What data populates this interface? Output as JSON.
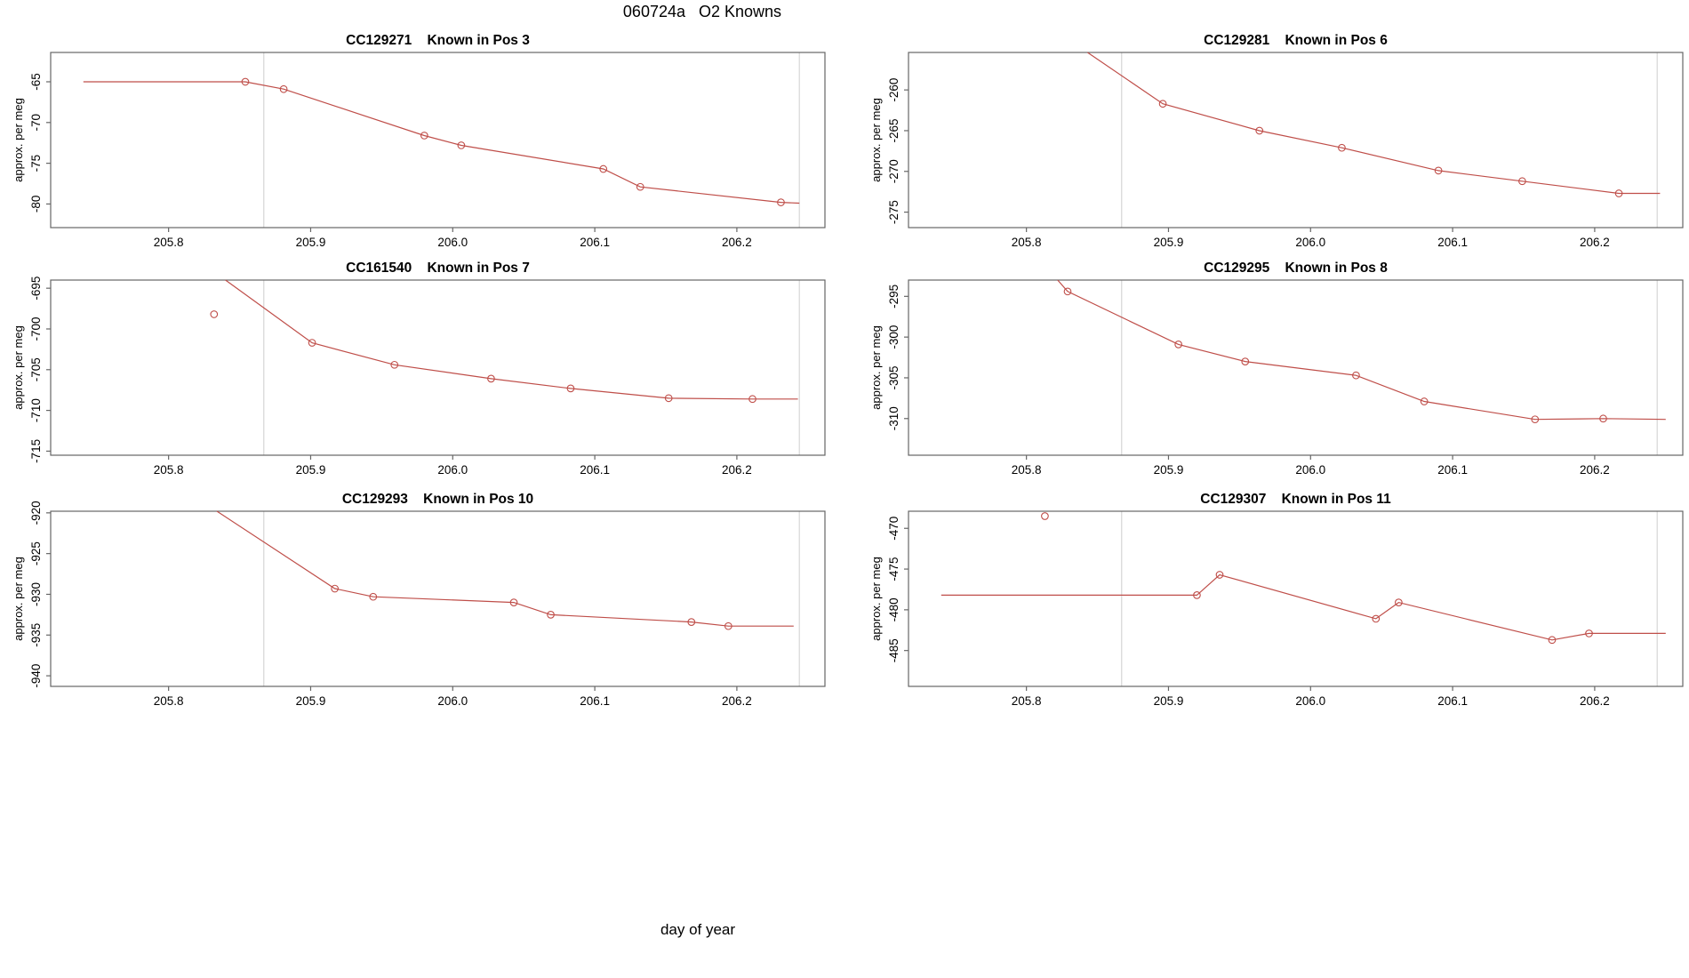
{
  "page": {
    "title": "060724a   O2 Knowns",
    "xlabel": "day of year",
    "line_color": "#bf4e49",
    "grid_color": "#d9d9d9",
    "box_color": "#666666",
    "text_color": "#000000"
  },
  "chart_data": [
    {
      "type": "line",
      "title": "CC129271    Known in Pos 3",
      "ylabel": "approx. per meg",
      "xlim": [
        205.717,
        206.262
      ],
      "ylim": [
        -82.9,
        -61.4
      ],
      "xticks": [
        205.8,
        205.9,
        206.0,
        206.1,
        206.2
      ],
      "xtick_labels": [
        "205.8",
        "205.9",
        "206.0",
        "206.1",
        "206.2"
      ],
      "yticks": [
        -65,
        -70,
        -75,
        -80
      ],
      "ytick_labels": [
        "-65",
        "-70",
        "-75",
        "-80"
      ],
      "vlines": [
        205.867,
        206.244
      ],
      "line": [
        [
          205.74,
          -65.0
        ],
        [
          205.854,
          -65.0
        ],
        [
          205.881,
          -65.9
        ],
        [
          205.98,
          -71.6
        ],
        [
          206.006,
          -72.8
        ],
        [
          206.106,
          -75.7
        ],
        [
          206.132,
          -77.9
        ],
        [
          206.231,
          -79.8
        ],
        [
          206.244,
          -79.9
        ]
      ],
      "markers": [
        [
          205.854,
          -65.0
        ],
        [
          205.881,
          -65.9
        ],
        [
          205.98,
          -71.6
        ],
        [
          206.006,
          -72.8
        ],
        [
          206.106,
          -75.7
        ],
        [
          206.132,
          -77.9
        ],
        [
          206.231,
          -79.8
        ]
      ],
      "points": []
    },
    {
      "type": "line",
      "title": "CC129281    Known in Pos 6",
      "ylabel": "approx. per meg",
      "xlim": [
        205.717,
        206.262
      ],
      "ylim": [
        -276.9,
        -255.4
      ],
      "xticks": [
        205.8,
        205.9,
        206.0,
        206.1,
        206.2
      ],
      "xtick_labels": [
        "205.8",
        "205.9",
        "206.0",
        "206.1",
        "206.2"
      ],
      "yticks": [
        -260,
        -265,
        -270,
        -275
      ],
      "ytick_labels": [
        "-260",
        "-265",
        "-270",
        "-275"
      ],
      "vlines": [
        205.867,
        206.244
      ],
      "line": [
        [
          205.843,
          -255.4
        ],
        [
          205.896,
          -261.7
        ],
        [
          205.964,
          -265.0
        ],
        [
          206.022,
          -267.1
        ],
        [
          206.09,
          -269.9
        ],
        [
          206.149,
          -271.2
        ],
        [
          206.217,
          -272.7
        ],
        [
          206.246,
          -272.7
        ]
      ],
      "markers": [
        [
          205.896,
          -261.7
        ],
        [
          205.964,
          -265.0
        ],
        [
          206.022,
          -267.1
        ],
        [
          206.09,
          -269.9
        ],
        [
          206.149,
          -271.2
        ],
        [
          206.217,
          -272.7
        ]
      ],
      "points": []
    },
    {
      "type": "line",
      "title": "CC161540    Known in Pos 7",
      "ylabel": "approx. per meg",
      "xlim": [
        205.717,
        206.262
      ],
      "ylim": [
        -715.5,
        -694.0
      ],
      "xticks": [
        205.8,
        205.9,
        206.0,
        206.1,
        206.2
      ],
      "xtick_labels": [
        "205.8",
        "205.9",
        "206.0",
        "206.1",
        "206.2"
      ],
      "yticks": [
        -695,
        -700,
        -705,
        -710,
        -715
      ],
      "ytick_labels": [
        "-695",
        "-700",
        "-705",
        "-710",
        "-715"
      ],
      "vlines": [
        205.867,
        206.244
      ],
      "line": [
        [
          205.84,
          -694.0
        ],
        [
          205.901,
          -701.7
        ],
        [
          205.959,
          -704.4
        ],
        [
          206.027,
          -706.1
        ],
        [
          206.083,
          -707.3
        ],
        [
          206.152,
          -708.5
        ],
        [
          206.211,
          -708.6
        ],
        [
          206.243,
          -708.6
        ]
      ],
      "markers": [
        [
          205.901,
          -701.7
        ],
        [
          205.959,
          -704.4
        ],
        [
          206.027,
          -706.1
        ],
        [
          206.083,
          -707.3
        ],
        [
          206.152,
          -708.5
        ],
        [
          206.211,
          -708.6
        ]
      ],
      "points": [
        [
          205.832,
          -698.2
        ]
      ]
    },
    {
      "type": "line",
      "title": "CC129295    Known in Pos 8",
      "ylabel": "approx. per meg",
      "xlim": [
        205.717,
        206.262
      ],
      "ylim": [
        -314.5,
        -293.0
      ],
      "xticks": [
        205.8,
        205.9,
        206.0,
        206.1,
        206.2
      ],
      "xtick_labels": [
        "205.8",
        "205.9",
        "206.0",
        "206.1",
        "206.2"
      ],
      "yticks": [
        -295,
        -300,
        -305,
        -310
      ],
      "ytick_labels": [
        "-295",
        "-300",
        "-305",
        "-310"
      ],
      "vlines": [
        205.867,
        206.244
      ],
      "line": [
        [
          205.822,
          -293.0
        ],
        [
          205.829,
          -294.4
        ],
        [
          205.907,
          -300.9
        ],
        [
          205.954,
          -303.0
        ],
        [
          206.032,
          -304.7
        ],
        [
          206.08,
          -307.9
        ],
        [
          206.158,
          -310.1
        ],
        [
          206.206,
          -310.0
        ],
        [
          206.25,
          -310.1
        ]
      ],
      "markers": [
        [
          205.829,
          -294.4
        ],
        [
          205.907,
          -300.9
        ],
        [
          205.954,
          -303.0
        ],
        [
          206.032,
          -304.7
        ],
        [
          206.08,
          -307.9
        ],
        [
          206.158,
          -310.1
        ],
        [
          206.206,
          -310.0
        ]
      ],
      "points": []
    },
    {
      "type": "line",
      "title": "CC129293    Known in Pos 10",
      "ylabel": "approx. per meg",
      "xlim": [
        205.717,
        206.262
      ],
      "ylim": [
        -941.3,
        -919.8
      ],
      "xticks": [
        205.8,
        205.9,
        206.0,
        206.1,
        206.2
      ],
      "xtick_labels": [
        "205.8",
        "205.9",
        "206.0",
        "206.1",
        "206.2"
      ],
      "yticks": [
        -920,
        -925,
        -930,
        -935,
        -940
      ],
      "ytick_labels": [
        "-920",
        "-925",
        "-930",
        "-935",
        "-940"
      ],
      "vlines": [
        205.867,
        206.244
      ],
      "line": [
        [
          205.834,
          -919.8
        ],
        [
          205.917,
          -929.3
        ],
        [
          205.944,
          -930.3
        ],
        [
          206.043,
          -931.0
        ],
        [
          206.069,
          -932.5
        ],
        [
          206.168,
          -933.4
        ],
        [
          206.194,
          -933.9
        ],
        [
          206.24,
          -933.9
        ]
      ],
      "markers": [
        [
          205.917,
          -929.3
        ],
        [
          205.944,
          -930.3
        ],
        [
          206.043,
          -931.0
        ],
        [
          206.069,
          -932.5
        ],
        [
          206.168,
          -933.4
        ],
        [
          206.194,
          -933.9
        ]
      ],
      "points": []
    },
    {
      "type": "line",
      "title": "CC129307    Known in Pos 11",
      "ylabel": "approx. per meg",
      "xlim": [
        205.717,
        206.262
      ],
      "ylim": [
        -489.4,
        -467.9
      ],
      "xticks": [
        205.8,
        205.9,
        206.0,
        206.1,
        206.2
      ],
      "xtick_labels": [
        "205.8",
        "205.9",
        "206.0",
        "206.1",
        "206.2"
      ],
      "yticks": [
        -470,
        -475,
        -480,
        -485
      ],
      "ytick_labels": [
        "-470",
        "-475",
        "-480",
        "-485"
      ],
      "vlines": [
        205.867,
        206.244
      ],
      "line": [
        [
          205.74,
          -478.2
        ],
        [
          205.92,
          -478.2
        ],
        [
          205.936,
          -475.7
        ],
        [
          206.046,
          -481.1
        ],
        [
          206.062,
          -479.1
        ],
        [
          206.17,
          -483.7
        ],
        [
          206.196,
          -482.9
        ],
        [
          206.25,
          -482.9
        ]
      ],
      "markers": [
        [
          205.92,
          -478.2
        ],
        [
          205.936,
          -475.7
        ],
        [
          206.046,
          -481.1
        ],
        [
          206.062,
          -479.1
        ],
        [
          206.17,
          -483.7
        ],
        [
          206.196,
          -482.9
        ]
      ],
      "points": [
        [
          205.813,
          -468.5
        ]
      ]
    }
  ]
}
